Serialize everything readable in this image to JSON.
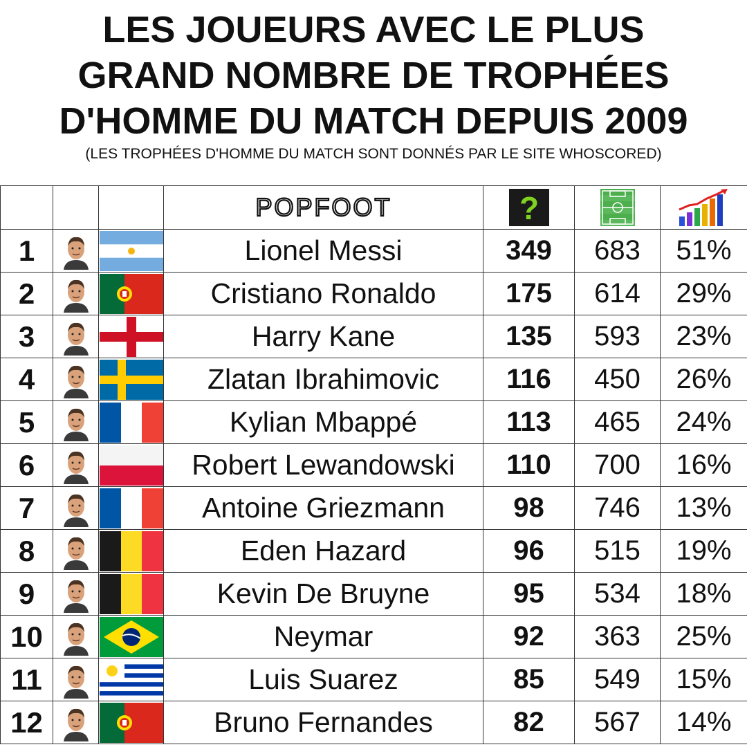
{
  "title": {
    "line1": "LES JOUEURS AVEC LE PLUS",
    "line2": "GRAND NOMBRE DE TROPHÉES",
    "line3": "D'HOMME DU MATCH DEPUIS 2009",
    "subtitle": "(LES TROPHÉES D'HOMME DU MATCH SONT DONNÉS PAR LE SITE WHOSCORED)"
  },
  "header": {
    "logo_text": "POPFOOT",
    "icons": [
      "question-mark-icon",
      "football-pitch-icon",
      "rising-chart-icon"
    ]
  },
  "players": [
    {
      "rank": "1",
      "name": "Lionel Messi",
      "flag": "argentina",
      "motm": "349",
      "matches": "683",
      "pct": "51%"
    },
    {
      "rank": "2",
      "name": "Cristiano Ronaldo",
      "flag": "portugal",
      "motm": "175",
      "matches": "614",
      "pct": "29%"
    },
    {
      "rank": "3",
      "name": "Harry Kane",
      "flag": "england",
      "motm": "135",
      "matches": "593",
      "pct": "23%"
    },
    {
      "rank": "4",
      "name": "Zlatan Ibrahimovic",
      "flag": "sweden",
      "motm": "116",
      "matches": "450",
      "pct": "26%"
    },
    {
      "rank": "5",
      "name": "Kylian Mbappé",
      "flag": "france",
      "motm": "113",
      "matches": "465",
      "pct": "24%"
    },
    {
      "rank": "6",
      "name": "Robert Lewandowski",
      "flag": "poland",
      "motm": "110",
      "matches": "700",
      "pct": "16%"
    },
    {
      "rank": "7",
      "name": "Antoine Griezmann",
      "flag": "france",
      "motm": "98",
      "matches": "746",
      "pct": "13%"
    },
    {
      "rank": "8",
      "name": "Eden Hazard",
      "flag": "belgium",
      "motm": "96",
      "matches": "515",
      "pct": "19%"
    },
    {
      "rank": "9",
      "name": "Kevin De Bruyne",
      "flag": "belgium",
      "motm": "95",
      "matches": "534",
      "pct": "18%"
    },
    {
      "rank": "10",
      "name": "Neymar",
      "flag": "brazil",
      "motm": "92",
      "matches": "363",
      "pct": "25%"
    },
    {
      "rank": "11",
      "name": "Luis Suarez",
      "flag": "uruguay",
      "motm": "85",
      "matches": "549",
      "pct": "15%"
    },
    {
      "rank": "12",
      "name": "Bruno Fernandes",
      "flag": "portugal",
      "motm": "82",
      "matches": "567",
      "pct": "14%"
    }
  ]
}
